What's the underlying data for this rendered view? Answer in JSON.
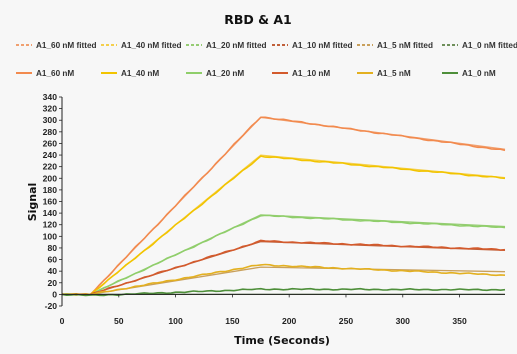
{
  "chart_data": {
    "type": "line",
    "title": "RBD & A1",
    "xlabel": "Time  (Seconds)",
    "ylabel": "Signal",
    "xlim": [
      0,
      390
    ],
    "ylim": [
      -20,
      340
    ],
    "xticks": [
      0,
      50,
      100,
      150,
      200,
      250,
      300,
      350
    ],
    "yticks": [
      -20,
      0,
      20,
      40,
      60,
      80,
      100,
      120,
      140,
      160,
      180,
      200,
      220,
      240,
      260,
      280,
      300,
      320,
      340
    ],
    "grid": false,
    "legend_position": "top",
    "series": [
      {
        "name": "A1_60 nM fitted",
        "color": "#f0a070",
        "style": "fitted",
        "x": [
          0,
          25,
          175,
          390
        ],
        "y": [
          0,
          0,
          305,
          250
        ]
      },
      {
        "name": "A1_40 nM fitted",
        "color": "#f4cf4c",
        "style": "fitted",
        "x": [
          0,
          25,
          175,
          390
        ],
        "y": [
          0,
          0,
          240,
          201
        ]
      },
      {
        "name": "A1_20 nM fitted",
        "color": "#96cc74",
        "style": "fitted",
        "x": [
          0,
          25,
          175,
          390
        ],
        "y": [
          0,
          0,
          137,
          117
        ]
      },
      {
        "name": "A1_10 nM fitted",
        "color": "#c0603a",
        "style": "fitted",
        "x": [
          0,
          25,
          175,
          390
        ],
        "y": [
          0,
          0,
          91,
          76
        ]
      },
      {
        "name": "A1_5 nM fitted",
        "color": "#c9a05c",
        "style": "fitted",
        "x": [
          0,
          25,
          175,
          390
        ],
        "y": [
          0,
          0,
          47,
          39
        ]
      },
      {
        "name": "A1_0 nM fitted",
        "color": "#6e8f5a",
        "style": "fitted",
        "x": [
          0,
          390
        ],
        "y": [
          0,
          0
        ]
      },
      {
        "name": "A1_60 nM",
        "color": "#f28a4e",
        "style": "measured",
        "x": [
          0,
          25,
          175,
          390
        ],
        "y": [
          0,
          0,
          306,
          248
        ]
      },
      {
        "name": "A1_40 nM",
        "color": "#f2c400",
        "style": "measured",
        "x": [
          0,
          25,
          175,
          390
        ],
        "y": [
          0,
          0,
          238,
          200
        ]
      },
      {
        "name": "A1_20 nM",
        "color": "#8fce6a",
        "style": "measured",
        "x": [
          0,
          25,
          175,
          390
        ],
        "y": [
          0,
          0,
          136,
          115
        ]
      },
      {
        "name": "A1_10 nM",
        "color": "#d35a2c",
        "style": "measured",
        "x": [
          0,
          25,
          175,
          390
        ],
        "y": [
          0,
          0,
          92,
          77
        ]
      },
      {
        "name": "A1_5 nM",
        "color": "#e3b020",
        "style": "measured",
        "x": [
          0,
          25,
          175,
          390
        ],
        "y": [
          0,
          0,
          51,
          33
        ]
      },
      {
        "name": "A1_0 nM",
        "color": "#4e8f3a",
        "style": "measured",
        "x": [
          0,
          25,
          175,
          390
        ],
        "y": [
          0,
          -2,
          9,
          8
        ]
      }
    ]
  }
}
